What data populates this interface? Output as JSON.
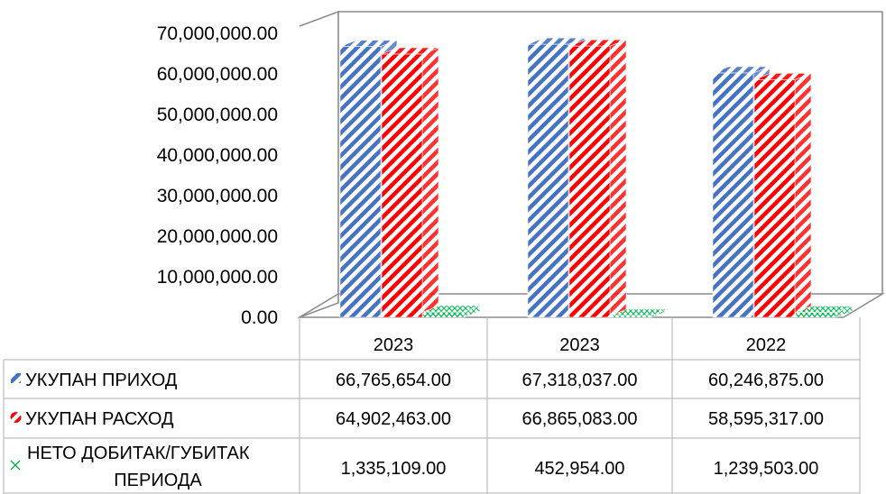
{
  "chart_data": {
    "type": "bar",
    "categories": [
      "2023",
      "2023",
      "2022"
    ],
    "series": [
      {
        "name": "УКУПАН ПРИХОД",
        "values": [
          66765654.0,
          67318037.0,
          60246875.0
        ],
        "color": "#4472c4",
        "labels": [
          "66,765,654.00",
          "67,318,037.00",
          "60,246,875.00"
        ]
      },
      {
        "name": "УКУПАН РАСХОД",
        "values": [
          64902463.0,
          66865083.0,
          58595317.0
        ],
        "color": "#ff0000",
        "labels": [
          "64,902,463.00",
          "66,865,083.00",
          "58,595,317.00"
        ]
      },
      {
        "name": "НЕТО ДОБИТАК/ГУБИТАК ПЕРИОДА",
        "name_lines": [
          "НЕТО ДОБИТАК/ГУБИТАК",
          "ПЕРИОДА"
        ],
        "values": [
          1335109.0,
          452954.0,
          1239503.0
        ],
        "color": "#00b050",
        "labels": [
          "1,335,109.00",
          "452,954.00",
          "1,239,503.00"
        ]
      }
    ],
    "ylim": [
      0,
      70000000
    ],
    "yticks": [
      0,
      10000000,
      20000000,
      30000000,
      40000000,
      50000000,
      60000000,
      70000000
    ],
    "ytick_labels": [
      "0.00",
      "10,000,000.00",
      "20,000,000.00",
      "30,000,000.00",
      "40,000,000.00",
      "50,000,000.00",
      "60,000,000.00",
      "70,000,000.00"
    ],
    "style": "3d-clustered-column-with-data-table",
    "grid": false,
    "legend": "data-table"
  }
}
